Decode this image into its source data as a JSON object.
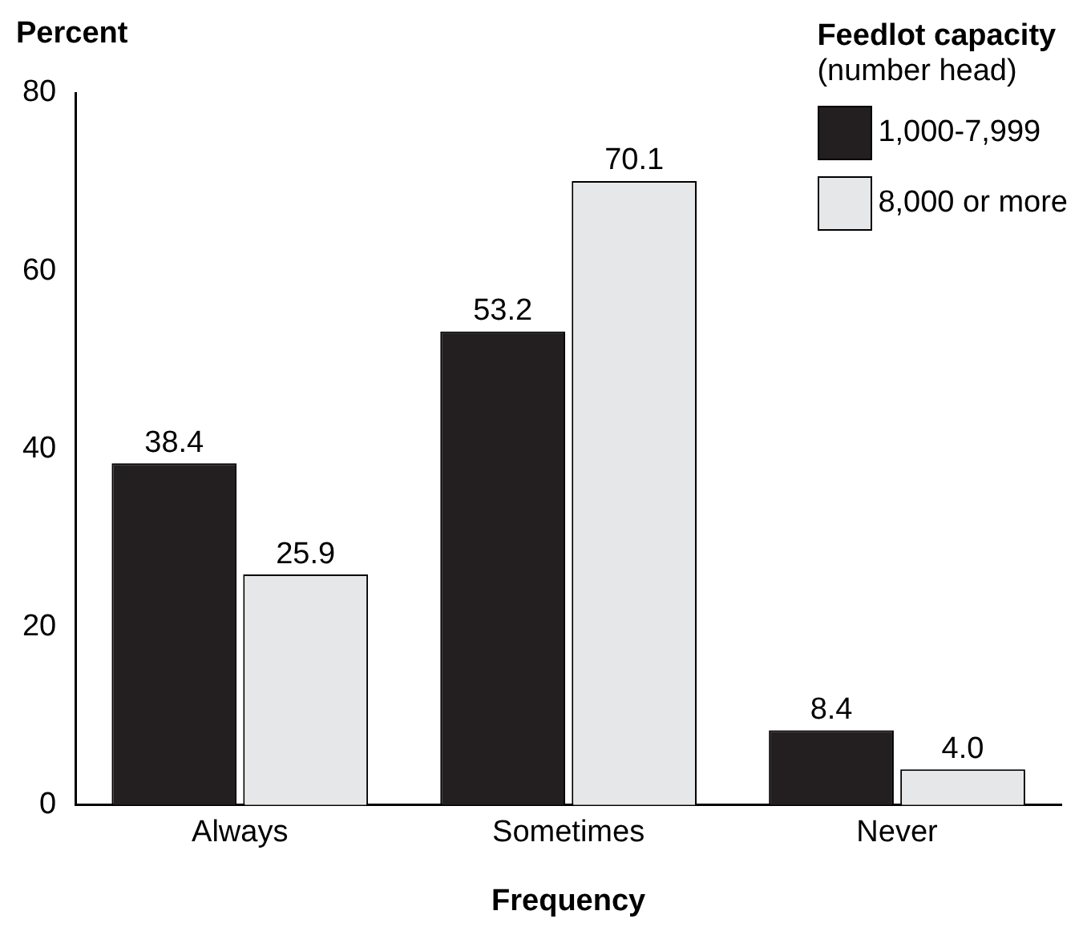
{
  "chart_data": {
    "type": "bar",
    "xlabel": "Frequency",
    "ylabel": "Percent",
    "legend_title": "Feedlot capacity",
    "annotations": [
      "(number head)"
    ],
    "categories": [
      "Always",
      "Sometimes",
      "Never"
    ],
    "series": [
      {
        "name": "1,000-7,999",
        "color": "#231f20",
        "values": [
          38.4,
          53.2,
          8.4
        ],
        "value_labels": [
          "38.4",
          "53.2",
          "8.4"
        ]
      },
      {
        "name": "8,000 or more",
        "color": "#e6e7e8",
        "values": [
          25.9,
          70.1,
          4.0
        ],
        "value_labels": [
          "25.9",
          "70.1",
          "4.0"
        ]
      }
    ],
    "ylim": [
      0,
      80
    ],
    "yticks": [
      0,
      20,
      40,
      60,
      80
    ],
    "grid": false,
    "legend": "top right"
  }
}
